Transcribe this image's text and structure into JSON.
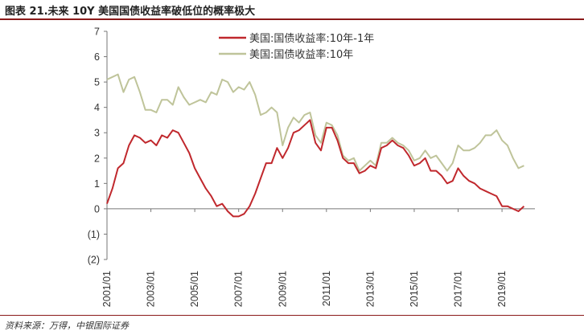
{
  "header": {
    "title": "图表 21.未来 10Y 美国国债收益率破低位的概率极大"
  },
  "footer": {
    "source": "资料来源：万得，中银国际证券"
  },
  "chart_data": {
    "type": "line",
    "title": "",
    "xlabel": "",
    "ylabel": "",
    "ylim": [
      -2,
      7
    ],
    "xlim": [
      "2001-01",
      "2020-07"
    ],
    "y_ticks": [
      "7",
      "6",
      "5",
      "4",
      "3",
      "2",
      "1",
      "0",
      "(1)",
      "(2)"
    ],
    "x_ticks": [
      "2001/01",
      "2003/01",
      "2005/01",
      "2007/01",
      "2009/01",
      "2011/01",
      "2013/01",
      "2015/01",
      "2017/01",
      "2019/01"
    ],
    "legend_position": "top-center",
    "grid": false,
    "series": [
      {
        "name": "美国:国债收益率:10年-1年",
        "color": "#c0282d",
        "points": [
          [
            "2001-01",
            0.2
          ],
          [
            "2001-04",
            0.8
          ],
          [
            "2001-07",
            1.6
          ],
          [
            "2001-10",
            1.8
          ],
          [
            "2002-01",
            2.5
          ],
          [
            "2002-04",
            2.9
          ],
          [
            "2002-07",
            2.8
          ],
          [
            "2002-10",
            2.6
          ],
          [
            "2003-01",
            2.7
          ],
          [
            "2003-04",
            2.5
          ],
          [
            "2003-07",
            2.9
          ],
          [
            "2003-10",
            2.8
          ],
          [
            "2004-01",
            3.1
          ],
          [
            "2004-04",
            3.0
          ],
          [
            "2004-07",
            2.6
          ],
          [
            "2004-10",
            2.2
          ],
          [
            "2005-01",
            1.6
          ],
          [
            "2005-04",
            1.2
          ],
          [
            "2005-07",
            0.8
          ],
          [
            "2005-10",
            0.5
          ],
          [
            "2006-01",
            0.1
          ],
          [
            "2006-04",
            0.2
          ],
          [
            "2006-07",
            -0.1
          ],
          [
            "2006-10",
            -0.3
          ],
          [
            "2007-01",
            -0.3
          ],
          [
            "2007-04",
            -0.2
          ],
          [
            "2007-07",
            0.1
          ],
          [
            "2007-10",
            0.6
          ],
          [
            "2008-01",
            1.2
          ],
          [
            "2008-04",
            1.8
          ],
          [
            "2008-07",
            1.8
          ],
          [
            "2008-10",
            2.4
          ],
          [
            "2009-01",
            2.0
          ],
          [
            "2009-04",
            2.4
          ],
          [
            "2009-07",
            3.0
          ],
          [
            "2009-10",
            3.1
          ],
          [
            "2010-01",
            3.3
          ],
          [
            "2010-04",
            3.5
          ],
          [
            "2010-07",
            2.6
          ],
          [
            "2010-10",
            2.3
          ],
          [
            "2011-01",
            3.2
          ],
          [
            "2011-04",
            3.2
          ],
          [
            "2011-07",
            2.7
          ],
          [
            "2011-10",
            2.0
          ],
          [
            "2012-01",
            1.8
          ],
          [
            "2012-04",
            1.8
          ],
          [
            "2012-07",
            1.4
          ],
          [
            "2012-10",
            1.5
          ],
          [
            "2013-01",
            1.7
          ],
          [
            "2013-04",
            1.6
          ],
          [
            "2013-07",
            2.4
          ],
          [
            "2013-10",
            2.5
          ],
          [
            "2014-01",
            2.7
          ],
          [
            "2014-04",
            2.5
          ],
          [
            "2014-07",
            2.4
          ],
          [
            "2014-10",
            2.1
          ],
          [
            "2015-01",
            1.7
          ],
          [
            "2015-04",
            1.8
          ],
          [
            "2015-07",
            2.0
          ],
          [
            "2015-10",
            1.5
          ],
          [
            "2016-01",
            1.5
          ],
          [
            "2016-04",
            1.3
          ],
          [
            "2016-07",
            1.0
          ],
          [
            "2016-10",
            1.1
          ],
          [
            "2017-01",
            1.6
          ],
          [
            "2017-04",
            1.3
          ],
          [
            "2017-07",
            1.1
          ],
          [
            "2017-10",
            1.0
          ],
          [
            "2018-01",
            0.8
          ],
          [
            "2018-04",
            0.7
          ],
          [
            "2018-07",
            0.6
          ],
          [
            "2018-10",
            0.5
          ],
          [
            "2019-01",
            0.1
          ],
          [
            "2019-04",
            0.1
          ],
          [
            "2019-07",
            0.0
          ],
          [
            "2019-10",
            -0.1
          ],
          [
            "2020-01",
            0.1
          ]
        ]
      },
      {
        "name": "美国:国债收益率:10年",
        "color": "#bfc49a",
        "points": [
          [
            "2001-01",
            5.1
          ],
          [
            "2001-04",
            5.2
          ],
          [
            "2001-07",
            5.3
          ],
          [
            "2001-10",
            4.6
          ],
          [
            "2002-01",
            5.1
          ],
          [
            "2002-04",
            5.2
          ],
          [
            "2002-07",
            4.6
          ],
          [
            "2002-10",
            3.9
          ],
          [
            "2003-01",
            3.9
          ],
          [
            "2003-04",
            3.8
          ],
          [
            "2003-07",
            4.3
          ],
          [
            "2003-10",
            4.3
          ],
          [
            "2004-01",
            4.1
          ],
          [
            "2004-04",
            4.8
          ],
          [
            "2004-07",
            4.4
          ],
          [
            "2004-10",
            4.1
          ],
          [
            "2005-01",
            4.2
          ],
          [
            "2005-04",
            4.3
          ],
          [
            "2005-07",
            4.2
          ],
          [
            "2005-10",
            4.6
          ],
          [
            "2006-01",
            4.5
          ],
          [
            "2006-04",
            5.1
          ],
          [
            "2006-07",
            5.0
          ],
          [
            "2006-10",
            4.6
          ],
          [
            "2007-01",
            4.8
          ],
          [
            "2007-04",
            4.7
          ],
          [
            "2007-07",
            5.0
          ],
          [
            "2007-10",
            4.5
          ],
          [
            "2008-01",
            3.7
          ],
          [
            "2008-04",
            3.8
          ],
          [
            "2008-07",
            4.0
          ],
          [
            "2008-10",
            3.8
          ],
          [
            "2009-01",
            2.5
          ],
          [
            "2009-04",
            3.2
          ],
          [
            "2009-07",
            3.6
          ],
          [
            "2009-10",
            3.4
          ],
          [
            "2010-01",
            3.7
          ],
          [
            "2010-04",
            3.8
          ],
          [
            "2010-07",
            2.9
          ],
          [
            "2010-10",
            2.6
          ],
          [
            "2011-01",
            3.4
          ],
          [
            "2011-04",
            3.3
          ],
          [
            "2011-07",
            2.9
          ],
          [
            "2011-10",
            2.1
          ],
          [
            "2012-01",
            1.9
          ],
          [
            "2012-04",
            2.0
          ],
          [
            "2012-07",
            1.5
          ],
          [
            "2012-10",
            1.7
          ],
          [
            "2013-01",
            1.9
          ],
          [
            "2013-04",
            1.7
          ],
          [
            "2013-07",
            2.6
          ],
          [
            "2013-10",
            2.6
          ],
          [
            "2014-01",
            2.8
          ],
          [
            "2014-04",
            2.6
          ],
          [
            "2014-07",
            2.5
          ],
          [
            "2014-10",
            2.3
          ],
          [
            "2015-01",
            1.9
          ],
          [
            "2015-04",
            2.0
          ],
          [
            "2015-07",
            2.3
          ],
          [
            "2015-10",
            2.0
          ],
          [
            "2016-01",
            2.1
          ],
          [
            "2016-04",
            1.8
          ],
          [
            "2016-07",
            1.5
          ],
          [
            "2016-10",
            1.8
          ],
          [
            "2017-01",
            2.5
          ],
          [
            "2017-04",
            2.3
          ],
          [
            "2017-07",
            2.3
          ],
          [
            "2017-10",
            2.4
          ],
          [
            "2018-01",
            2.6
          ],
          [
            "2018-04",
            2.9
          ],
          [
            "2018-07",
            2.9
          ],
          [
            "2018-10",
            3.1
          ],
          [
            "2019-01",
            2.7
          ],
          [
            "2019-04",
            2.5
          ],
          [
            "2019-07",
            2.0
          ],
          [
            "2019-10",
            1.6
          ],
          [
            "2020-01",
            1.7
          ]
        ]
      }
    ]
  }
}
